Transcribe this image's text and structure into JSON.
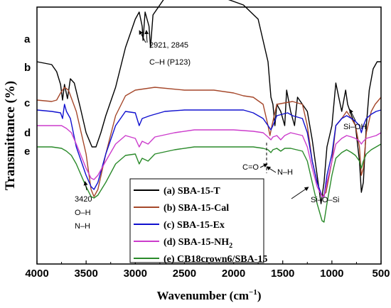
{
  "chart_data": {
    "type": "line",
    "xlabel": "Wavenumber (cm",
    "xlabel_sup": "−1",
    "xlabel_end": ")",
    "ylabel": "Transmittance (%)",
    "xlim": [
      4000,
      500
    ],
    "x_ticks": [
      4000,
      3500,
      3000,
      2500,
      2000,
      1500,
      1000,
      500
    ],
    "y_ticks_shown": false,
    "legend_position": "bottom-center",
    "series": [
      {
        "letter": "a",
        "name": "(a) SBA-15-T",
        "color": "#000000",
        "points": [
          [
            4000,
            1.0
          ],
          [
            3850,
            0.98
          ],
          [
            3800,
            0.93
          ],
          [
            3760,
            0.84
          ],
          [
            3740,
            0.73
          ],
          [
            3720,
            0.84
          ],
          [
            3690,
            0.74
          ],
          [
            3660,
            0.88
          ],
          [
            3620,
            0.85
          ],
          [
            3560,
            0.68
          ],
          [
            3500,
            0.5
          ],
          [
            3440,
            0.4
          ],
          [
            3400,
            0.4
          ],
          [
            3350,
            0.5
          ],
          [
            3300,
            0.62
          ],
          [
            3200,
            0.82
          ],
          [
            3100,
            1.1
          ],
          [
            3000,
            1.3
          ],
          [
            2960,
            1.35
          ],
          [
            2930,
            1.25
          ],
          [
            2921,
            1.15
          ],
          [
            2900,
            1.35
          ],
          [
            2860,
            1.25
          ],
          [
            2845,
            1.1
          ],
          [
            2820,
            1.33
          ],
          [
            2700,
            1.45
          ],
          [
            2500,
            1.5
          ],
          [
            2300,
            1.48
          ],
          [
            2100,
            1.45
          ],
          [
            1900,
            1.4
          ],
          [
            1750,
            1.3
          ],
          [
            1650,
            1.0
          ],
          [
            1620,
            0.75
          ],
          [
            1600,
            0.7
          ],
          [
            1580,
            0.55
          ],
          [
            1560,
            0.7
          ],
          [
            1520,
            0.65
          ],
          [
            1480,
            0.55
          ],
          [
            1460,
            0.8
          ],
          [
            1420,
            0.65
          ],
          [
            1380,
            0.55
          ],
          [
            1350,
            0.75
          ],
          [
            1300,
            0.7
          ],
          [
            1250,
            0.65
          ],
          [
            1200,
            0.45
          ],
          [
            1150,
            0.2
          ],
          [
            1110,
            0.0
          ],
          [
            1080,
            0.15
          ],
          [
            1050,
            0.4
          ],
          [
            1000,
            0.55
          ],
          [
            960,
            0.85
          ],
          [
            930,
            0.75
          ],
          [
            900,
            0.65
          ],
          [
            860,
            0.8
          ],
          [
            840,
            0.7
          ],
          [
            800,
            0.62
          ],
          [
            760,
            0.55
          ],
          [
            720,
            0.3
          ],
          [
            700,
            0.08
          ],
          [
            680,
            0.15
          ],
          [
            650,
            0.55
          ],
          [
            620,
            0.8
          ],
          [
            580,
            0.95
          ],
          [
            540,
            1.0
          ],
          [
            500,
            1.0
          ]
        ]
      },
      {
        "letter": "b",
        "name": "(b) SBA-15-Cal",
        "color": "#a5472a",
        "points": [
          [
            4000,
            0.73
          ],
          [
            3850,
            0.72
          ],
          [
            3800,
            0.73
          ],
          [
            3760,
            0.78
          ],
          [
            3720,
            0.82
          ],
          [
            3680,
            0.8
          ],
          [
            3600,
            0.65
          ],
          [
            3500,
            0.35
          ],
          [
            3450,
            0.1
          ],
          [
            3420,
            0.05
          ],
          [
            3380,
            0.1
          ],
          [
            3300,
            0.35
          ],
          [
            3200,
            0.62
          ],
          [
            3100,
            0.76
          ],
          [
            3000,
            0.8
          ],
          [
            2800,
            0.82
          ],
          [
            2500,
            0.8
          ],
          [
            2200,
            0.8
          ],
          [
            2000,
            0.78
          ],
          [
            1900,
            0.76
          ],
          [
            1800,
            0.75
          ],
          [
            1700,
            0.7
          ],
          [
            1650,
            0.55
          ],
          [
            1630,
            0.48
          ],
          [
            1610,
            0.55
          ],
          [
            1560,
            0.7
          ],
          [
            1400,
            0.72
          ],
          [
            1300,
            0.7
          ],
          [
            1250,
            0.55
          ],
          [
            1200,
            0.3
          ],
          [
            1150,
            0.15
          ],
          [
            1100,
            0.05
          ],
          [
            1060,
            0.08
          ],
          [
            1000,
            0.3
          ],
          [
            960,
            0.55
          ],
          [
            900,
            0.6
          ],
          [
            850,
            0.65
          ],
          [
            800,
            0.6
          ],
          [
            760,
            0.55
          ],
          [
            720,
            0.4
          ],
          [
            700,
            0.2
          ],
          [
            680,
            0.25
          ],
          [
            650,
            0.5
          ],
          [
            600,
            0.65
          ],
          [
            560,
            0.7
          ],
          [
            500,
            0.75
          ]
        ]
      },
      {
        "letter": "c",
        "name": "(c) SBA-15-Ex",
        "color": "#1010cf",
        "points": [
          [
            4000,
            0.66
          ],
          [
            3850,
            0.65
          ],
          [
            3760,
            0.64
          ],
          [
            3740,
            0.6
          ],
          [
            3720,
            0.7
          ],
          [
            3700,
            0.65
          ],
          [
            3660,
            0.6
          ],
          [
            3600,
            0.4
          ],
          [
            3500,
            0.2
          ],
          [
            3450,
            0.12
          ],
          [
            3420,
            0.1
          ],
          [
            3380,
            0.15
          ],
          [
            3300,
            0.35
          ],
          [
            3200,
            0.55
          ],
          [
            3100,
            0.65
          ],
          [
            3000,
            0.64
          ],
          [
            2960,
            0.55
          ],
          [
            2930,
            0.6
          ],
          [
            2850,
            0.62
          ],
          [
            2700,
            0.65
          ],
          [
            2500,
            0.66
          ],
          [
            2300,
            0.66
          ],
          [
            2100,
            0.66
          ],
          [
            1900,
            0.66
          ],
          [
            1800,
            0.64
          ],
          [
            1700,
            0.6
          ],
          [
            1650,
            0.55
          ],
          [
            1620,
            0.52
          ],
          [
            1600,
            0.55
          ],
          [
            1560,
            0.62
          ],
          [
            1450,
            0.64
          ],
          [
            1400,
            0.62
          ],
          [
            1300,
            0.6
          ],
          [
            1250,
            0.5
          ],
          [
            1200,
            0.3
          ],
          [
            1150,
            0.15
          ],
          [
            1100,
            0.05
          ],
          [
            1080,
            0.05
          ],
          [
            1050,
            0.2
          ],
          [
            1000,
            0.35
          ],
          [
            960,
            0.55
          ],
          [
            900,
            0.6
          ],
          [
            850,
            0.62
          ],
          [
            800,
            0.6
          ],
          [
            760,
            0.58
          ],
          [
            720,
            0.55
          ],
          [
            700,
            0.5
          ],
          [
            680,
            0.55
          ],
          [
            650,
            0.6
          ],
          [
            600,
            0.63
          ],
          [
            550,
            0.65
          ],
          [
            500,
            0.66
          ]
        ]
      },
      {
        "letter": "d",
        "name": "(d) SBA-15-NH",
        "name_sub": "2",
        "color": "#cc3ccc",
        "points": [
          [
            4000,
            0.55
          ],
          [
            3850,
            0.55
          ],
          [
            3750,
            0.55
          ],
          [
            3700,
            0.53
          ],
          [
            3650,
            0.5
          ],
          [
            3600,
            0.42
          ],
          [
            3500,
            0.25
          ],
          [
            3450,
            0.18
          ],
          [
            3420,
            0.17
          ],
          [
            3380,
            0.2
          ],
          [
            3300,
            0.3
          ],
          [
            3200,
            0.42
          ],
          [
            3100,
            0.48
          ],
          [
            3000,
            0.46
          ],
          [
            2960,
            0.4
          ],
          [
            2930,
            0.44
          ],
          [
            2870,
            0.42
          ],
          [
            2800,
            0.47
          ],
          [
            2600,
            0.5
          ],
          [
            2400,
            0.52
          ],
          [
            2200,
            0.52
          ],
          [
            2000,
            0.52
          ],
          [
            1800,
            0.51
          ],
          [
            1700,
            0.5
          ],
          [
            1650,
            0.47
          ],
          [
            1620,
            0.45
          ],
          [
            1600,
            0.47
          ],
          [
            1560,
            0.48
          ],
          [
            1520,
            0.45
          ],
          [
            1480,
            0.48
          ],
          [
            1420,
            0.5
          ],
          [
            1300,
            0.48
          ],
          [
            1250,
            0.4
          ],
          [
            1200,
            0.25
          ],
          [
            1150,
            0.12
          ],
          [
            1100,
            0.05
          ],
          [
            1080,
            0.05
          ],
          [
            1050,
            0.15
          ],
          [
            1000,
            0.3
          ],
          [
            960,
            0.42
          ],
          [
            900,
            0.46
          ],
          [
            850,
            0.48
          ],
          [
            800,
            0.47
          ],
          [
            760,
            0.46
          ],
          [
            720,
            0.44
          ],
          [
            700,
            0.42
          ],
          [
            680,
            0.44
          ],
          [
            650,
            0.46
          ],
          [
            600,
            0.47
          ],
          [
            550,
            0.48
          ],
          [
            500,
            0.5
          ]
        ]
      },
      {
        "letter": "e",
        "name": "(e) CB18crown6/SBA-15",
        "color": "#2a8a2a",
        "points": [
          [
            4000,
            0.4
          ],
          [
            3850,
            0.4
          ],
          [
            3750,
            0.39
          ],
          [
            3700,
            0.37
          ],
          [
            3650,
            0.34
          ],
          [
            3600,
            0.28
          ],
          [
            3500,
            0.12
          ],
          [
            3450,
            0.05
          ],
          [
            3420,
            0.04
          ],
          [
            3380,
            0.06
          ],
          [
            3300,
            0.15
          ],
          [
            3200,
            0.28
          ],
          [
            3100,
            0.34
          ],
          [
            3000,
            0.35
          ],
          [
            2960,
            0.28
          ],
          [
            2930,
            0.32
          ],
          [
            2870,
            0.3
          ],
          [
            2800,
            0.35
          ],
          [
            2600,
            0.38
          ],
          [
            2400,
            0.4
          ],
          [
            2200,
            0.4
          ],
          [
            2000,
            0.4
          ],
          [
            1800,
            0.4
          ],
          [
            1700,
            0.39
          ],
          [
            1650,
            0.38
          ],
          [
            1620,
            0.36
          ],
          [
            1600,
            0.38
          ],
          [
            1560,
            0.39
          ],
          [
            1520,
            0.37
          ],
          [
            1480,
            0.39
          ],
          [
            1420,
            0.39
          ],
          [
            1300,
            0.37
          ],
          [
            1250,
            0.3
          ],
          [
            1200,
            0.15
          ],
          [
            1150,
            0.0
          ],
          [
            1100,
            -0.12
          ],
          [
            1080,
            -0.13
          ],
          [
            1050,
            0.0
          ],
          [
            1000,
            0.2
          ],
          [
            960,
            0.32
          ],
          [
            900,
            0.36
          ],
          [
            850,
            0.38
          ],
          [
            800,
            0.36
          ],
          [
            760,
            0.34
          ],
          [
            720,
            0.3
          ],
          [
            700,
            0.25
          ],
          [
            680,
            0.3
          ],
          [
            650,
            0.35
          ],
          [
            600,
            0.38
          ],
          [
            550,
            0.4
          ],
          [
            500,
            0.42
          ]
        ]
      }
    ],
    "annotations": [
      {
        "id": "ch-p123",
        "lines": [
          "2921, 2845",
          "C–H (P123)"
        ]
      },
      {
        "id": "sioh",
        "lines": [
          "Si–OH"
        ]
      },
      {
        "id": "co",
        "lines": [
          "C=O"
        ]
      },
      {
        "id": "nh-bend",
        "lines": [
          "N–H"
        ]
      },
      {
        "id": "oh-nh",
        "lines": [
          "3420",
          "O–H",
          "N–H"
        ]
      },
      {
        "id": "siosi",
        "lines": [
          "Si–O–Si"
        ]
      }
    ]
  }
}
